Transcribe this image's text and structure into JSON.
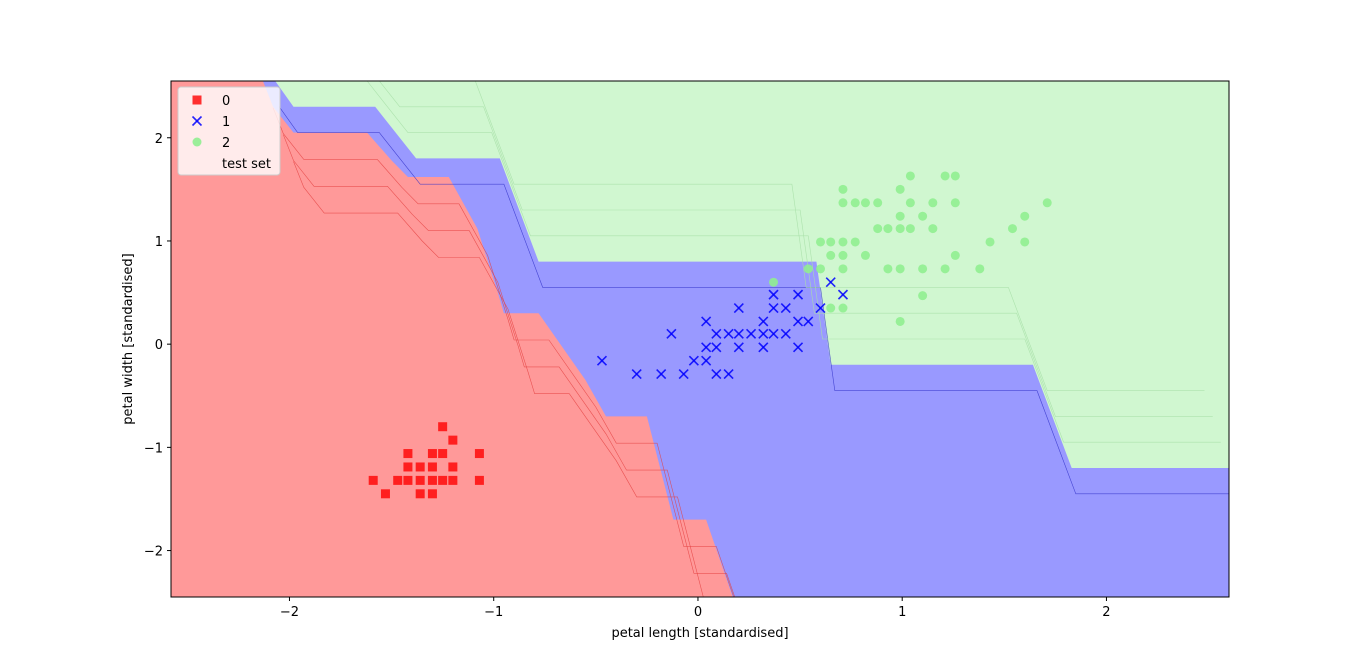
{
  "chart_data": {
    "type": "scatter",
    "title": "",
    "xlabel": "petal length [standardised]",
    "ylabel": "petal width [standardised]",
    "xlim": [
      -2.58,
      2.6
    ],
    "ylim": [
      -2.45,
      2.55
    ],
    "xticks": [
      -2,
      -1,
      0,
      1,
      2
    ],
    "xtick_labels": [
      "−2",
      "−1",
      "0",
      "1",
      "2"
    ],
    "yticks": [
      -2,
      -1,
      0,
      1,
      2
    ],
    "ytick_labels": [
      "−2",
      "−1",
      "0",
      "1",
      "2"
    ],
    "grid": false,
    "legend_placement": "upper-left",
    "legend": [
      {
        "label": "0",
        "marker": "square",
        "color": "#ff0000"
      },
      {
        "label": "1",
        "marker": "x",
        "color": "#0000ff"
      },
      {
        "label": "2",
        "marker": "circle",
        "color": "#90ee90"
      },
      {
        "label": "test set",
        "marker": "none",
        "color": "#ffffff"
      }
    ],
    "decision_regions": [
      {
        "class": "0",
        "color": "#ff9999"
      },
      {
        "class": "1",
        "color": "#9999ff"
      },
      {
        "class": "2",
        "color": "#d0f7d0"
      }
    ],
    "region_boundaries": {
      "red_blue": [
        [
          -2.13,
          2.55
        ],
        [
          -2.08,
          2.3
        ],
        [
          -1.98,
          2.05
        ],
        [
          -1.62,
          2.05
        ],
        [
          -1.5,
          1.78
        ],
        [
          -1.42,
          1.62
        ],
        [
          -1.22,
          1.62
        ],
        [
          -1.08,
          1.12
        ],
        [
          -0.98,
          0.5
        ],
        [
          -0.95,
          0.3
        ],
        [
          -0.78,
          0.3
        ],
        [
          -0.55,
          -0.35
        ],
        [
          -0.45,
          -0.7
        ],
        [
          -0.25,
          -0.7
        ],
        [
          -0.12,
          -1.7
        ],
        [
          0.04,
          -1.7
        ],
        [
          0.17,
          -2.45
        ]
      ],
      "blue_green": [
        [
          -2.07,
          2.55
        ],
        [
          -1.98,
          2.3
        ],
        [
          -1.58,
          2.3
        ],
        [
          -1.38,
          1.8
        ],
        [
          -0.97,
          1.8
        ],
        [
          -0.78,
          0.8
        ],
        [
          0.58,
          0.8
        ],
        [
          0.65,
          -0.2
        ],
        [
          1.64,
          -0.2
        ],
        [
          1.83,
          -1.2
        ],
        [
          2.6,
          -1.2
        ]
      ]
    },
    "series": [
      {
        "name": "0",
        "marker": "square",
        "color": "#ff0000",
        "points": [
          [
            -1.25,
            -0.8
          ],
          [
            -1.2,
            -0.93
          ],
          [
            -1.42,
            -1.06
          ],
          [
            -1.3,
            -1.06
          ],
          [
            -1.25,
            -1.06
          ],
          [
            -1.07,
            -1.06
          ],
          [
            -1.42,
            -1.19
          ],
          [
            -1.36,
            -1.19
          ],
          [
            -1.3,
            -1.19
          ],
          [
            -1.2,
            -1.19
          ],
          [
            -1.59,
            -1.32
          ],
          [
            -1.47,
            -1.32
          ],
          [
            -1.42,
            -1.32
          ],
          [
            -1.36,
            -1.32
          ],
          [
            -1.3,
            -1.32
          ],
          [
            -1.25,
            -1.32
          ],
          [
            -1.2,
            -1.32
          ],
          [
            -1.07,
            -1.32
          ],
          [
            -1.53,
            -1.45
          ],
          [
            -1.36,
            -1.45
          ],
          [
            -1.3,
            -1.45
          ]
        ]
      },
      {
        "name": "1",
        "marker": "x",
        "color": "#0000ff",
        "points": [
          [
            0.65,
            0.6
          ],
          [
            0.37,
            0.48
          ],
          [
            0.49,
            0.48
          ],
          [
            0.71,
            0.48
          ],
          [
            0.2,
            0.35
          ],
          [
            0.37,
            0.35
          ],
          [
            0.43,
            0.35
          ],
          [
            0.6,
            0.35
          ],
          [
            0.04,
            0.22
          ],
          [
            0.32,
            0.22
          ],
          [
            0.49,
            0.22
          ],
          [
            0.54,
            0.22
          ],
          [
            -0.13,
            0.1
          ],
          [
            0.09,
            0.1
          ],
          [
            0.15,
            0.1
          ],
          [
            0.2,
            0.1
          ],
          [
            0.26,
            0.1
          ],
          [
            0.32,
            0.1
          ],
          [
            0.37,
            0.1
          ],
          [
            0.43,
            0.1
          ],
          [
            0.04,
            -0.03
          ],
          [
            0.09,
            -0.03
          ],
          [
            0.2,
            -0.03
          ],
          [
            0.32,
            -0.03
          ],
          [
            0.49,
            -0.03
          ],
          [
            -0.47,
            -0.16
          ],
          [
            -0.02,
            -0.16
          ],
          [
            0.04,
            -0.16
          ],
          [
            -0.3,
            -0.29
          ],
          [
            -0.18,
            -0.29
          ],
          [
            -0.07,
            -0.29
          ],
          [
            0.09,
            -0.29
          ],
          [
            0.15,
            -0.29
          ]
        ]
      },
      {
        "name": "2",
        "marker": "circle",
        "color": "#90ee90",
        "points": [
          [
            1.04,
            1.63
          ],
          [
            1.21,
            1.63
          ],
          [
            1.26,
            1.63
          ],
          [
            0.71,
            1.5
          ],
          [
            0.99,
            1.5
          ],
          [
            0.71,
            1.37
          ],
          [
            0.77,
            1.37
          ],
          [
            0.82,
            1.37
          ],
          [
            0.88,
            1.37
          ],
          [
            1.04,
            1.37
          ],
          [
            1.15,
            1.37
          ],
          [
            1.26,
            1.37
          ],
          [
            1.71,
            1.37
          ],
          [
            0.99,
            1.24
          ],
          [
            1.1,
            1.24
          ],
          [
            1.6,
            1.24
          ],
          [
            0.88,
            1.12
          ],
          [
            0.93,
            1.12
          ],
          [
            0.99,
            1.12
          ],
          [
            1.04,
            1.12
          ],
          [
            1.15,
            1.12
          ],
          [
            1.54,
            1.12
          ],
          [
            0.6,
            0.99
          ],
          [
            0.65,
            0.99
          ],
          [
            0.71,
            0.99
          ],
          [
            0.77,
            0.99
          ],
          [
            1.43,
            0.99
          ],
          [
            1.6,
            0.99
          ],
          [
            0.65,
            0.86
          ],
          [
            0.71,
            0.86
          ],
          [
            0.82,
            0.86
          ],
          [
            1.26,
            0.86
          ],
          [
            0.54,
            0.73
          ],
          [
            0.6,
            0.73
          ],
          [
            0.71,
            0.73
          ],
          [
            0.93,
            0.73
          ],
          [
            0.99,
            0.73
          ],
          [
            1.1,
            0.73
          ],
          [
            1.21,
            0.73
          ],
          [
            1.38,
            0.73
          ],
          [
            0.37,
            0.6
          ],
          [
            1.1,
            0.47
          ],
          [
            0.65,
            0.35
          ],
          [
            0.71,
            0.35
          ],
          [
            0.99,
            0.22
          ]
        ]
      }
    ]
  }
}
